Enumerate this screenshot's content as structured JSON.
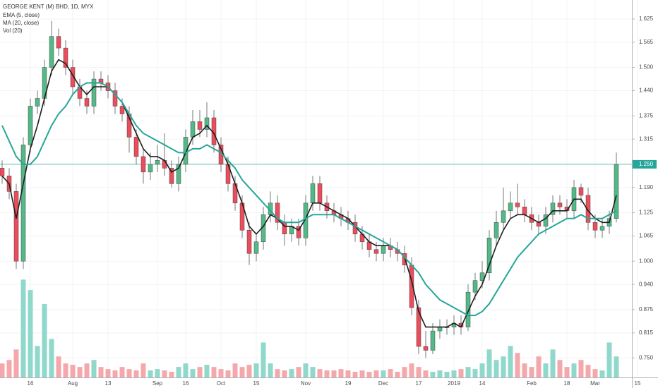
{
  "chart_data": {
    "type": "candlestick",
    "title": "GEORGE KENT (M) BHD, 1D, MYX",
    "categories": [
      null,
      null,
      null,
      null,
      "16",
      null,
      null,
      null,
      null,
      null,
      "Aug",
      null,
      null,
      null,
      null,
      "13",
      null,
      null,
      null,
      null,
      null,
      null,
      "Sep",
      null,
      null,
      null,
      "16",
      null,
      null,
      null,
      null,
      "Oct",
      null,
      null,
      null,
      null,
      "15",
      null,
      null,
      null,
      null,
      null,
      null,
      "Nov",
      null,
      null,
      null,
      null,
      null,
      "19",
      null,
      null,
      null,
      null,
      "Dec",
      null,
      null,
      null,
      null,
      "17",
      null,
      null,
      null,
      null,
      "2019",
      null,
      null,
      null,
      "14",
      null,
      null,
      null,
      null,
      null,
      null,
      "Feb",
      null,
      null,
      null,
      null,
      "18",
      null,
      null,
      null,
      "Mar",
      null,
      null,
      null,
      null,
      null,
      "15"
    ],
    "open": [
      1.24,
      1.22,
      1.18,
      1.0,
      1.3,
      1.4,
      1.42,
      1.5,
      1.58,
      1.55,
      1.5,
      1.45,
      1.42,
      1.4,
      1.47,
      1.46,
      1.44,
      1.4,
      1.38,
      1.32,
      1.27,
      1.23,
      1.25,
      1.26,
      1.24,
      1.2,
      1.25,
      1.32,
      1.36,
      1.34,
      1.37,
      1.3,
      1.25,
      1.2,
      1.15,
      1.08,
      1.02,
      1.05,
      1.12,
      1.15,
      1.1,
      1.07,
      1.09,
      1.06,
      1.15,
      1.2,
      1.15,
      1.13,
      1.12,
      1.11,
      1.1,
      1.07,
      1.05,
      1.03,
      1.02,
      1.04,
      1.03,
      1.02,
      0.99,
      0.88,
      0.78,
      0.77,
      0.82,
      0.83,
      0.83,
      0.84,
      0.83,
      0.92,
      0.95,
      0.97,
      1.06,
      1.1,
      1.13,
      1.15,
      1.14,
      1.12,
      1.1,
      1.09,
      1.12,
      1.15,
      1.14,
      1.13,
      1.19,
      1.17,
      1.1,
      1.08,
      1.09,
      1.11,
      null,
      null,
      null
    ],
    "high": [
      1.26,
      1.24,
      1.2,
      1.32,
      1.42,
      1.44,
      1.52,
      1.62,
      1.6,
      1.57,
      1.52,
      1.47,
      1.44,
      1.49,
      1.49,
      1.48,
      1.46,
      1.42,
      1.4,
      1.34,
      1.29,
      1.28,
      1.3,
      1.33,
      1.26,
      1.27,
      1.34,
      1.39,
      1.39,
      1.41,
      1.39,
      1.32,
      1.27,
      1.22,
      1.17,
      1.1,
      1.07,
      1.14,
      1.18,
      1.17,
      1.12,
      1.11,
      1.11,
      1.17,
      1.22,
      1.22,
      1.17,
      1.15,
      1.14,
      1.13,
      1.12,
      1.09,
      1.07,
      1.05,
      1.06,
      1.06,
      1.05,
      1.04,
      1.01,
      0.9,
      0.82,
      0.84,
      0.85,
      0.85,
      0.86,
      0.86,
      0.94,
      0.97,
      1.0,
      1.08,
      1.13,
      1.19,
      1.18,
      1.2,
      1.16,
      1.14,
      1.12,
      1.14,
      1.17,
      1.17,
      1.16,
      1.21,
      1.2,
      1.19,
      1.12,
      1.11,
      1.13,
      1.28,
      null,
      null,
      null
    ],
    "low": [
      1.2,
      1.16,
      0.98,
      0.98,
      1.28,
      1.38,
      1.4,
      1.48,
      1.53,
      1.48,
      1.43,
      1.4,
      1.38,
      1.38,
      1.44,
      1.42,
      1.38,
      1.36,
      1.28,
      1.25,
      1.2,
      1.21,
      1.23,
      1.22,
      1.19,
      1.18,
      1.23,
      1.3,
      1.32,
      1.32,
      1.28,
      1.23,
      1.18,
      1.13,
      1.06,
      0.99,
      1.0,
      1.03,
      1.1,
      1.08,
      1.04,
      1.05,
      1.04,
      1.04,
      1.13,
      1.13,
      1.11,
      1.1,
      1.09,
      1.08,
      1.05,
      1.03,
      1.01,
      1.0,
      1.0,
      1.01,
      1.0,
      0.97,
      0.86,
      0.76,
      0.75,
      0.76,
      0.8,
      0.81,
      0.81,
      0.81,
      0.82,
      0.9,
      0.93,
      0.95,
      1.04,
      1.08,
      1.11,
      1.12,
      1.1,
      1.08,
      1.07,
      1.07,
      1.1,
      1.12,
      1.11,
      1.11,
      1.15,
      1.08,
      1.06,
      1.06,
      1.07,
      1.1,
      null,
      null,
      null
    ],
    "close": [
      1.22,
      1.18,
      1.0,
      1.3,
      1.4,
      1.42,
      1.5,
      1.58,
      1.55,
      1.5,
      1.45,
      1.42,
      1.4,
      1.47,
      1.46,
      1.44,
      1.4,
      1.38,
      1.32,
      1.27,
      1.23,
      1.25,
      1.26,
      1.24,
      1.2,
      1.25,
      1.32,
      1.36,
      1.34,
      1.37,
      1.3,
      1.25,
      1.2,
      1.15,
      1.08,
      1.02,
      1.05,
      1.12,
      1.15,
      1.1,
      1.07,
      1.09,
      1.06,
      1.15,
      1.2,
      1.15,
      1.13,
      1.12,
      1.11,
      1.1,
      1.07,
      1.05,
      1.03,
      1.02,
      1.04,
      1.03,
      1.02,
      0.99,
      0.88,
      0.78,
      0.77,
      0.82,
      0.83,
      0.83,
      0.84,
      0.83,
      0.92,
      0.95,
      0.97,
      1.06,
      1.1,
      1.13,
      1.15,
      1.14,
      1.12,
      1.1,
      1.09,
      1.12,
      1.15,
      1.14,
      1.13,
      1.19,
      1.17,
      1.1,
      1.08,
      1.09,
      1.11,
      1.25,
      null,
      null,
      null
    ],
    "up_color": "#53b987",
    "down_color": "#eb4d5c",
    "indicators": [
      {
        "name": "EMA (5, close)",
        "color": "#1e1e1e",
        "values": [
          1.22,
          1.2,
          1.11,
          1.2,
          1.29,
          1.35,
          1.42,
          1.49,
          1.52,
          1.51,
          1.48,
          1.45,
          1.43,
          1.45,
          1.45,
          1.45,
          1.43,
          1.41,
          1.37,
          1.33,
          1.29,
          1.27,
          1.27,
          1.26,
          1.23,
          1.24,
          1.28,
          1.32,
          1.33,
          1.35,
          1.33,
          1.29,
          1.25,
          1.2,
          1.15,
          1.09,
          1.07,
          1.09,
          1.12,
          1.11,
          1.09,
          1.09,
          1.08,
          1.11,
          1.15,
          1.15,
          1.14,
          1.13,
          1.12,
          1.11,
          1.09,
          1.07,
          1.05,
          1.04,
          1.04,
          1.04,
          1.03,
          1.01,
          0.95,
          0.87,
          0.83,
          0.83,
          0.83,
          0.83,
          0.84,
          0.83,
          0.87,
          0.91,
          0.94,
          0.99,
          1.04,
          1.08,
          1.11,
          1.12,
          1.12,
          1.11,
          1.1,
          1.11,
          1.13,
          1.13,
          1.13,
          1.16,
          1.16,
          1.13,
          1.11,
          1.1,
          1.1,
          1.17,
          null,
          null,
          null
        ]
      },
      {
        "name": "MA (20, close)",
        "color": "#26a69a",
        "values": [
          1.35,
          1.31,
          1.27,
          1.25,
          1.25,
          1.27,
          1.31,
          1.35,
          1.38,
          1.4,
          1.43,
          1.45,
          1.46,
          1.46,
          1.46,
          1.45,
          1.43,
          1.41,
          1.38,
          1.35,
          1.33,
          1.32,
          1.31,
          1.3,
          1.29,
          1.28,
          1.28,
          1.29,
          1.29,
          1.3,
          1.29,
          1.28,
          1.26,
          1.24,
          1.21,
          1.19,
          1.17,
          1.15,
          1.13,
          1.11,
          1.1,
          1.1,
          1.1,
          1.11,
          1.12,
          1.12,
          1.12,
          1.12,
          1.11,
          1.1,
          1.09,
          1.08,
          1.07,
          1.06,
          1.05,
          1.04,
          1.03,
          1.01,
          0.99,
          0.97,
          0.94,
          0.92,
          0.9,
          0.89,
          0.88,
          0.87,
          0.86,
          0.86,
          0.87,
          0.89,
          0.92,
          0.95,
          0.98,
          1.01,
          1.03,
          1.05,
          1.07,
          1.08,
          1.09,
          1.1,
          1.11,
          1.11,
          1.12,
          1.11,
          1.11,
          1.11,
          1.12,
          1.13,
          null,
          null,
          null
        ]
      }
    ],
    "volume": {
      "name": "Vol (20)",
      "up_color": "#8fd8cb",
      "down_color": "#f5a8ab",
      "lim": [
        0,
        540
      ],
      "values": [
        20,
        25,
        40,
        140,
        125,
        45,
        105,
        55,
        30,
        20,
        18,
        15,
        20,
        25,
        15,
        12,
        10,
        15,
        12,
        10,
        20,
        10,
        12,
        10,
        8,
        15,
        20,
        12,
        15,
        18,
        15,
        12,
        10,
        20,
        15,
        18,
        20,
        50,
        20,
        12,
        10,
        12,
        15,
        20,
        15,
        12,
        10,
        10,
        12,
        10,
        8,
        10,
        8,
        10,
        10,
        12,
        8,
        15,
        20,
        15,
        10,
        8,
        10,
        8,
        10,
        12,
        15,
        12,
        20,
        40,
        25,
        30,
        45,
        35,
        20,
        15,
        30,
        20,
        40,
        25,
        15,
        20,
        25,
        18,
        12,
        10,
        50,
        30,
        null,
        null,
        null
      ]
    },
    "last_price": {
      "value": 1.25,
      "label": "1.250",
      "color": "#26a69a"
    },
    "ylim": [
      0.7,
      1.674
    ],
    "yticks": [
      {
        "value": 0.75,
        "label": "0.750"
      },
      0.815,
      0.875,
      {
        "value": 0.94,
        "label": "0.940"
      },
      {
        "value": 1.0,
        "label": "1.000"
      },
      1.065,
      1.125,
      {
        "value": 1.19,
        "label": "1.190"
      },
      1.315,
      1.375,
      {
        "value": 1.44,
        "label": "1.440"
      },
      {
        "value": 1.5,
        "label": "1.500"
      },
      1.565,
      1.625
    ],
    "grid": true
  }
}
